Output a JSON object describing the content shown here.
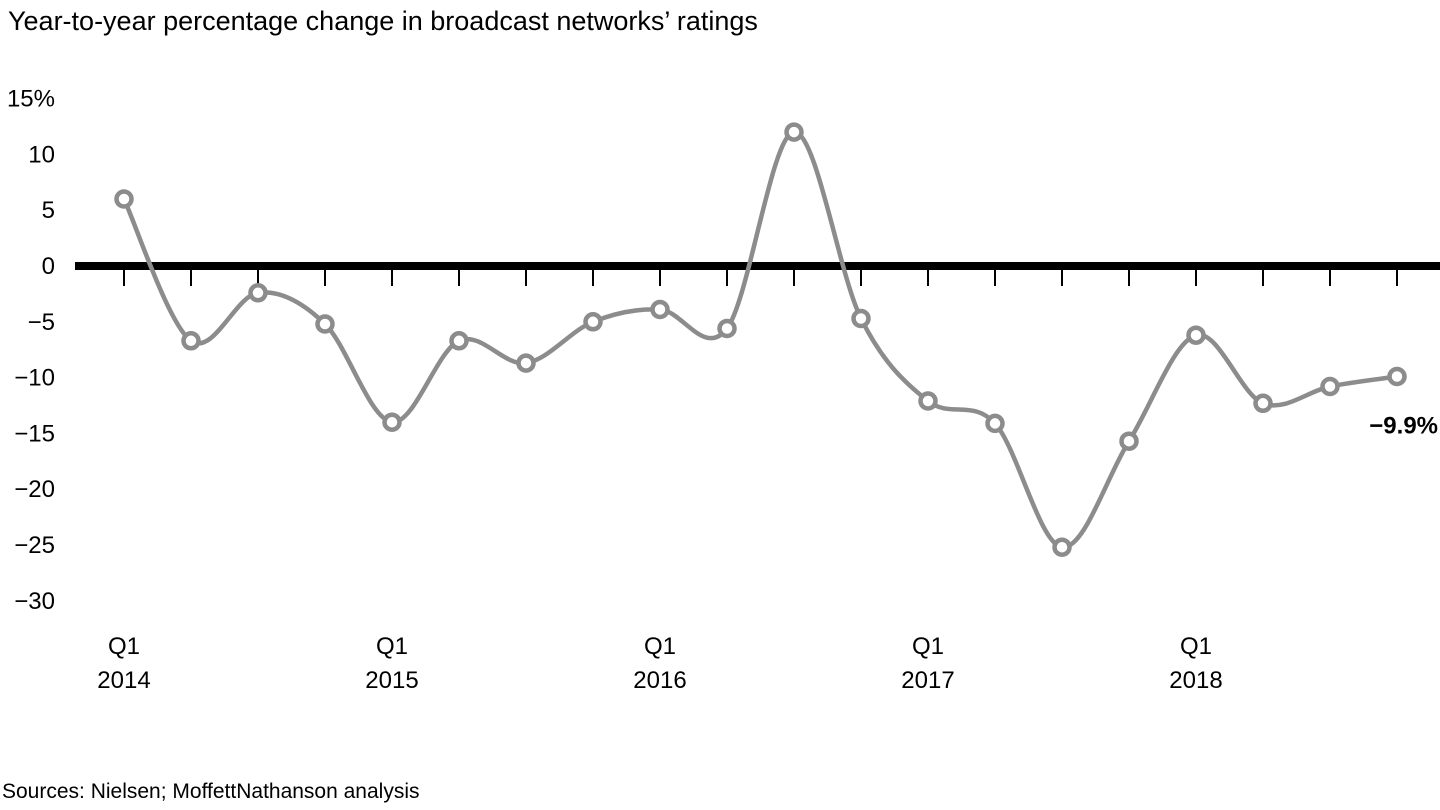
{
  "header": {
    "title": "Year-to-year percentage change in broadcast networks’ ratings"
  },
  "footer": {
    "source": "Sources: Nielsen; MoffettNathanson analysis"
  },
  "chart_data": {
    "type": "line",
    "title": "Year-to-year percentage change in broadcast networks’ ratings",
    "unit": "percent",
    "categories": [
      "Q1 2014",
      "Q2 2014",
      "Q3 2014",
      "Q4 2014",
      "Q1 2015",
      "Q2 2015",
      "Q3 2015",
      "Q4 2015",
      "Q1 2016",
      "Q2 2016",
      "Q3 2016",
      "Q4 2016",
      "Q1 2017",
      "Q2 2017",
      "Q3 2017",
      "Q4 2017",
      "Q1 2018",
      "Q2 2018",
      "Q3 2018",
      "Q4 2018"
    ],
    "values": [
      6.0,
      -6.7,
      -2.4,
      -5.2,
      -14.0,
      -6.7,
      -8.7,
      -5.0,
      -3.9,
      -5.6,
      12.0,
      -4.7,
      -12.1,
      -14.1,
      -25.2,
      -15.7,
      -6.2,
      -12.3,
      -10.8,
      -9.9
    ],
    "ylim": [
      -30,
      15
    ],
    "y_ticks": [
      {
        "value": 15,
        "label": "15%"
      },
      {
        "value": 10,
        "label": "10"
      },
      {
        "value": 5,
        "label": "5"
      },
      {
        "value": 0,
        "label": "0"
      },
      {
        "value": -5,
        "label": "−5"
      },
      {
        "value": -10,
        "label": "−10"
      },
      {
        "value": -15,
        "label": "−15"
      },
      {
        "value": -20,
        "label": "−20"
      },
      {
        "value": -25,
        "label": "−25"
      },
      {
        "value": -30,
        "label": "−30"
      }
    ],
    "x_axis_labels": [
      {
        "index": 0,
        "line1": "Q1",
        "line2": "2014"
      },
      {
        "index": 4,
        "line1": "Q1",
        "line2": "2015"
      },
      {
        "index": 8,
        "line1": "Q1",
        "line2": "2016"
      },
      {
        "index": 12,
        "line1": "Q1",
        "line2": "2017"
      },
      {
        "index": 16,
        "line1": "Q1",
        "line2": "2018"
      }
    ],
    "annotation": {
      "text": "−9.9%",
      "point_index": 19
    },
    "legend": "none",
    "grid": "off",
    "colors": {
      "line": "#8c8c8c",
      "marker_fill": "#ffffff",
      "zero_line": "#000000",
      "tick": "#000000",
      "text": "#000000"
    }
  }
}
